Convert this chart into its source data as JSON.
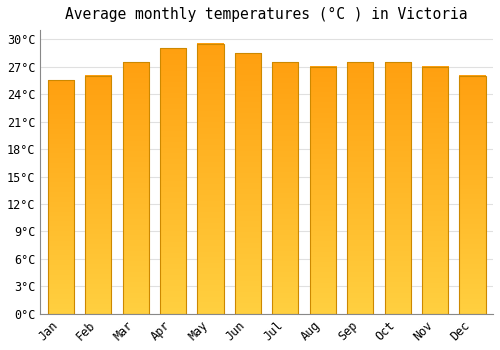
{
  "title": "Average monthly temperatures (°C ) in Victoria",
  "months": [
    "Jan",
    "Feb",
    "Mar",
    "Apr",
    "May",
    "Jun",
    "Jul",
    "Aug",
    "Sep",
    "Oct",
    "Nov",
    "Dec"
  ],
  "values": [
    25.5,
    26.0,
    27.5,
    29.0,
    29.5,
    28.5,
    27.5,
    27.0,
    27.5,
    27.5,
    27.0,
    26.0
  ],
  "bar_color_bottom": "#FFD040",
  "bar_color_top": "#FFA010",
  "bar_edge_color": "#CC8800",
  "background_color": "#FFFFFF",
  "grid_color": "#E0E0E0",
  "ylim": [
    0,
    31
  ],
  "yticks": [
    0,
    3,
    6,
    9,
    12,
    15,
    18,
    21,
    24,
    27,
    30
  ],
  "title_fontsize": 10.5,
  "tick_fontsize": 8.5,
  "bar_width": 0.7
}
